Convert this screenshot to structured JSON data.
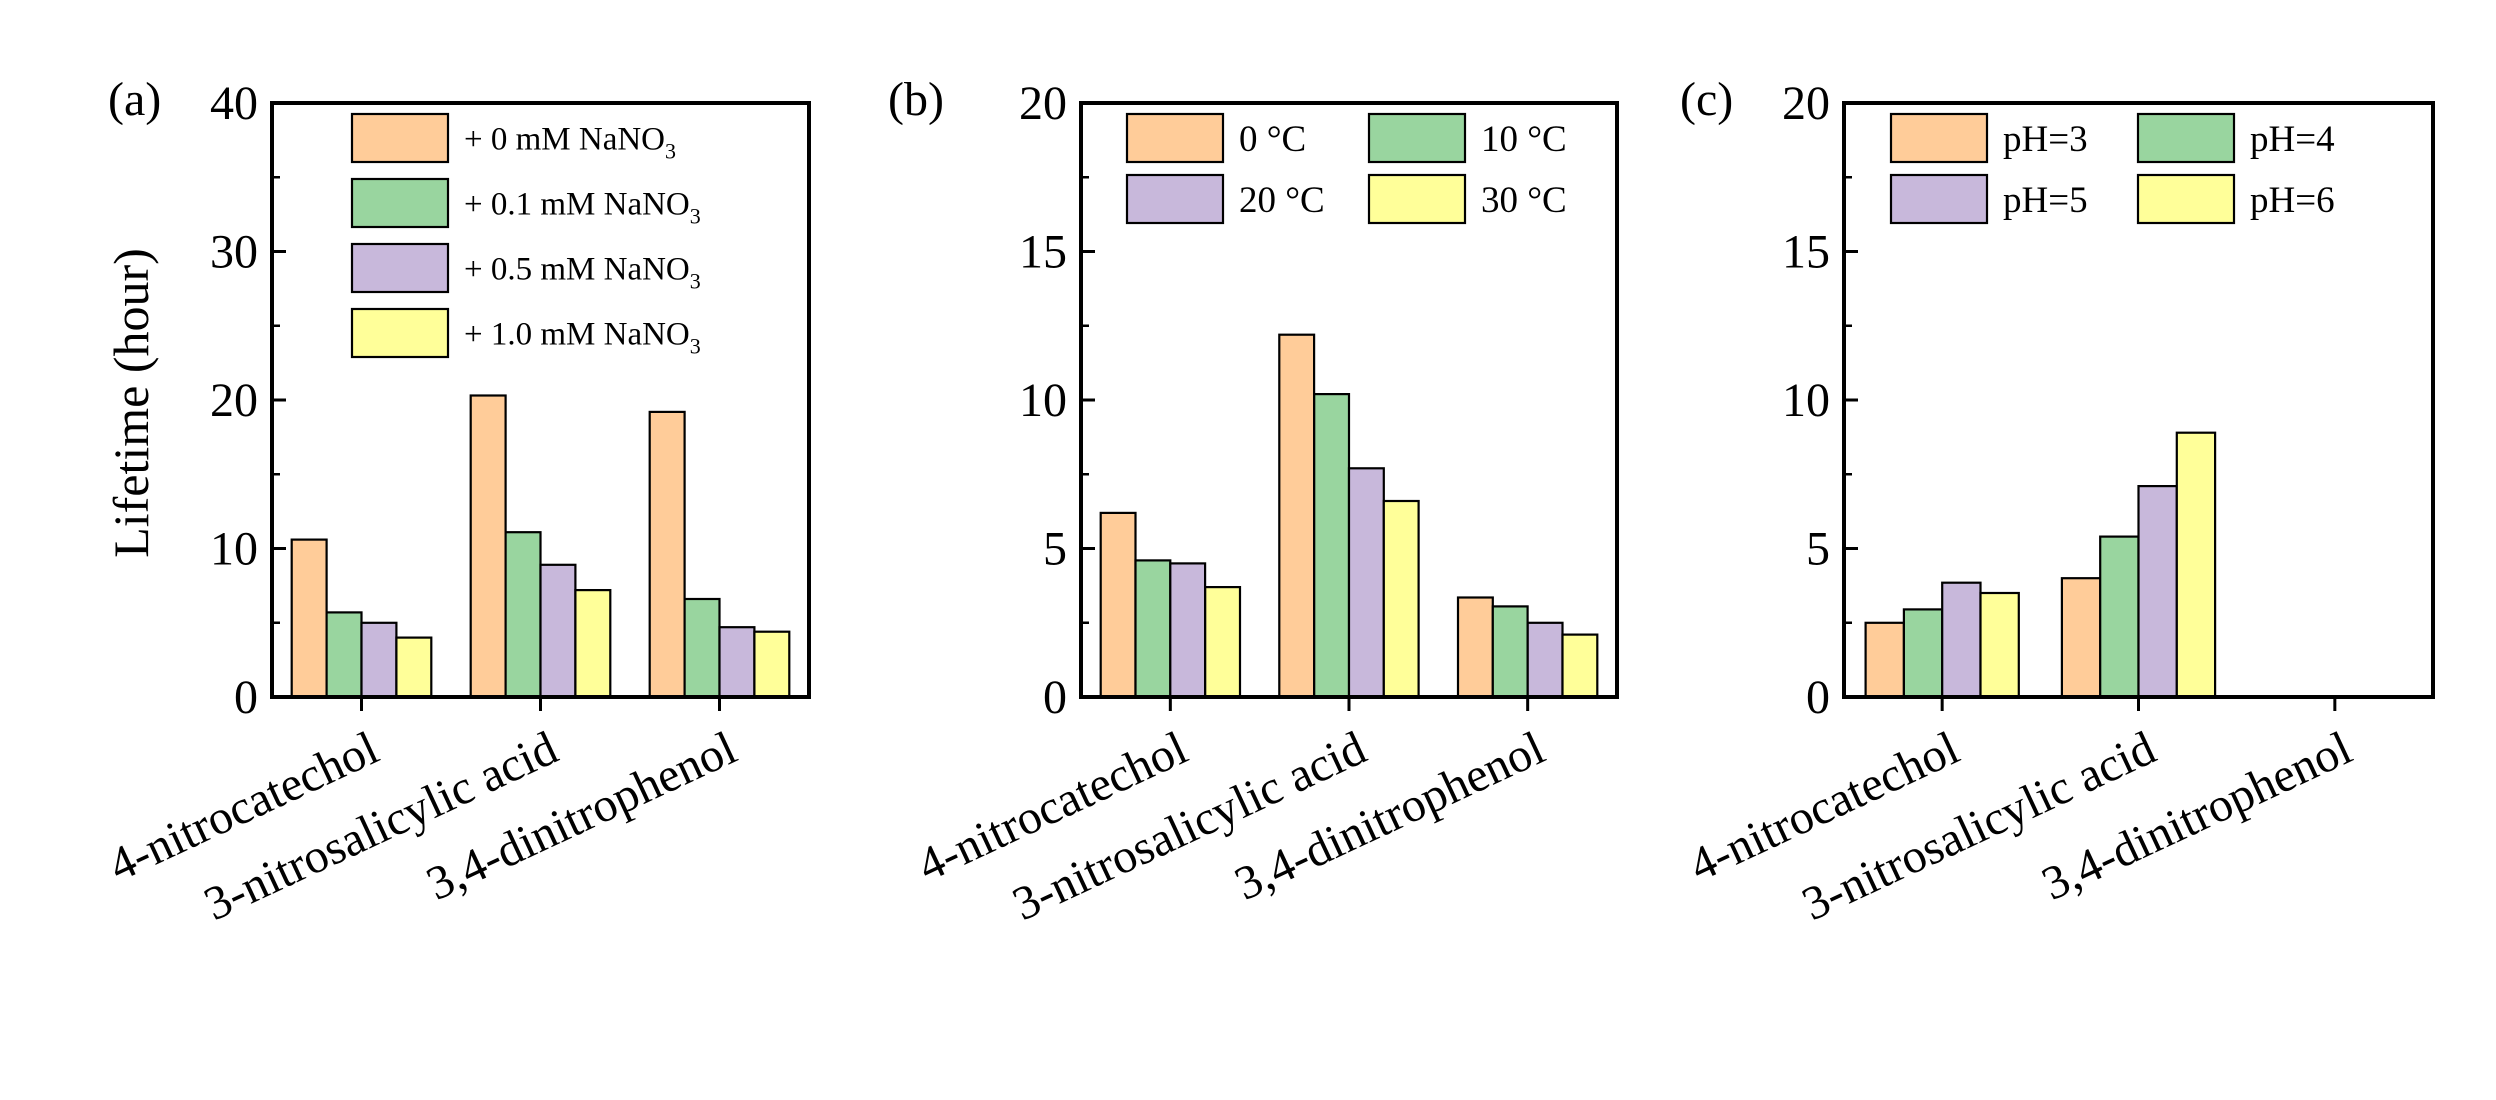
{
  "figure": {
    "y_axis_title": "Lifetime (hour)"
  },
  "colors": {
    "orange": "#FFCC99",
    "green": "#99D59F",
    "purple": "#C8B8DB",
    "yellow": "#FFFF99",
    "axis": "#000000"
  },
  "chart_data": [
    {
      "type": "bar",
      "panel_label": "(a)",
      "categories": [
        "4-nitrocatechol",
        "3-nitrosalicylic acid",
        "3,4-dinitrophenol"
      ],
      "ylim": [
        0,
        40
      ],
      "yticks": [
        0,
        10,
        20,
        30,
        40
      ],
      "ylabel": "Lifetime (hour)",
      "legend_placement": "top-right",
      "legend_columns": 1,
      "series": [
        {
          "name": "+ 0 mM NaNO",
          "subscript": "3",
          "color": "#FFCC99",
          "values": [
            10.6,
            20.3,
            19.2
          ]
        },
        {
          "name": "+ 0.1 mM NaNO",
          "subscript": "3",
          "color": "#99D59F",
          "values": [
            5.7,
            11.1,
            6.6
          ]
        },
        {
          "name": "+ 0.5 mM NaNO",
          "subscript": "3",
          "color": "#C8B8DB",
          "values": [
            5.0,
            8.9,
            4.7
          ]
        },
        {
          "name": "+ 1.0 mM NaNO",
          "subscript": "3",
          "color": "#FFFF99",
          "values": [
            4.0,
            7.2,
            4.4
          ]
        }
      ]
    },
    {
      "type": "bar",
      "panel_label": "(b)",
      "categories": [
        "4-nitrocatechol",
        "3-nitrosalicylic acid",
        "3,4-dinitrophenol"
      ],
      "ylim": [
        0,
        20
      ],
      "yticks": [
        0,
        5,
        10,
        15,
        20
      ],
      "legend_placement": "top",
      "legend_columns": 2,
      "series": [
        {
          "name": "0 °C",
          "color": "#FFCC99",
          "values": [
            6.2,
            12.2,
            3.35
          ]
        },
        {
          "name": "10 °C",
          "color": "#99D59F",
          "values": [
            4.6,
            10.2,
            3.05
          ]
        },
        {
          "name": "20 °C",
          "color": "#C8B8DB",
          "values": [
            4.5,
            7.7,
            2.5
          ]
        },
        {
          "name": "30 °C",
          "color": "#FFFF99",
          "values": [
            3.7,
            6.6,
            2.1
          ]
        }
      ]
    },
    {
      "type": "bar",
      "panel_label": "(c)",
      "categories": [
        "4-nitrocatechol",
        "3-nitrosalicylic acid",
        "3,4-dinitrophenol"
      ],
      "ylim": [
        0,
        20
      ],
      "yticks": [
        0,
        5,
        10,
        15,
        20
      ],
      "legend_placement": "top",
      "legend_columns": 2,
      "series": [
        {
          "name": "pH=3",
          "color": "#FFCC99",
          "values": [
            2.5,
            4.0,
            null
          ]
        },
        {
          "name": "pH=4",
          "color": "#99D59F",
          "values": [
            2.95,
            5.4,
            null
          ]
        },
        {
          "name": "pH=5",
          "color": "#C8B8DB",
          "values": [
            3.85,
            7.1,
            null
          ]
        },
        {
          "name": "pH=6",
          "color": "#FFFF99",
          "values": [
            3.5,
            8.9,
            null
          ]
        }
      ]
    }
  ]
}
